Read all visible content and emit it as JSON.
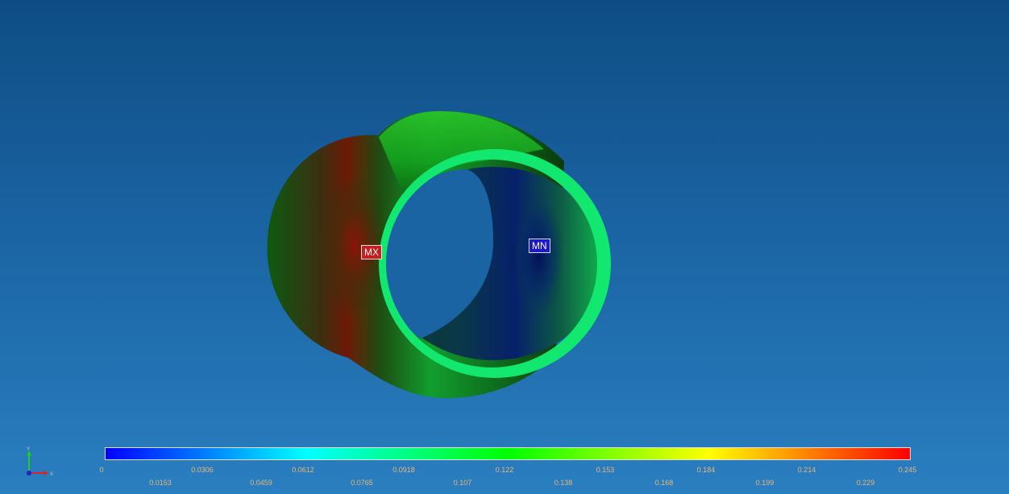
{
  "markers": {
    "max_label": "MX",
    "min_label": "MN"
  },
  "legend": {
    "colors": [
      "#0000ff",
      "#00ffff",
      "#00ff00",
      "#ffff00",
      "#ff0000"
    ],
    "upper_ticks": [
      "0",
      "0.0306",
      "0.0612",
      "0.0918",
      "0.122",
      "0.153",
      "0.184",
      "0.214",
      "0.245"
    ],
    "lower_ticks": [
      "0.0153",
      "0.0459",
      "0.0765",
      "0.107",
      "0.138",
      "0.168",
      "0.199",
      "0.229"
    ]
  },
  "triad": {
    "x_label": "X",
    "y_label": "Y"
  }
}
